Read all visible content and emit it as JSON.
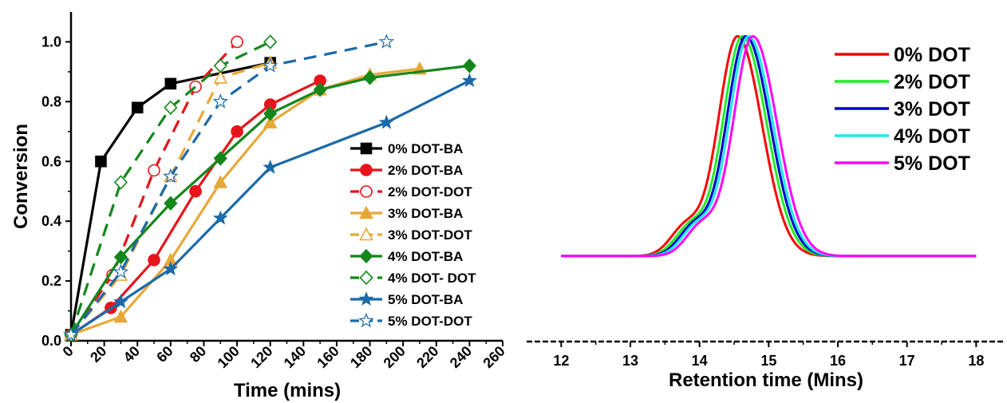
{
  "chart_data": [
    {
      "type": "line",
      "xlabel": "Time (mins)",
      "ylabel": "Conversion",
      "xlim": [
        0,
        260
      ],
      "ylim": [
        0,
        1.1
      ],
      "xticks": [
        "0",
        "20",
        "40",
        "60",
        "80",
        "100",
        "120",
        "140",
        "160",
        "180",
        "200",
        "220",
        "240",
        "260"
      ],
      "yticks": [
        "0.0",
        "0.2",
        "0.4",
        "0.6",
        "0.8",
        "1.0"
      ],
      "legend_position": "lower-right",
      "series": [
        {
          "name": "0% DOT-BA",
          "color": "#000000",
          "dash": false,
          "marker": "square",
          "filled": true,
          "x": [
            0,
            18,
            40,
            60,
            120
          ],
          "y": [
            0.02,
            0.6,
            0.78,
            0.86,
            0.93
          ]
        },
        {
          "name": "2% DOT-BA",
          "color": "#e8141c",
          "dash": false,
          "marker": "circle",
          "filled": true,
          "x": [
            0,
            24,
            50,
            75,
            100,
            120,
            150
          ],
          "y": [
            0.02,
            0.11,
            0.27,
            0.5,
            0.7,
            0.79,
            0.87
          ]
        },
        {
          "name": "2% DOT-DOT",
          "color": "#e8141c",
          "dash": true,
          "marker": "circle",
          "filled": false,
          "x": [
            0,
            25,
            50,
            75,
            100
          ],
          "y": [
            0.02,
            0.22,
            0.57,
            0.85,
            1.0
          ]
        },
        {
          "name": "3% DOT-BA",
          "color": "#e8a838",
          "dash": false,
          "marker": "triangle",
          "filled": true,
          "x": [
            0,
            30,
            60,
            90,
            120,
            150,
            180,
            210
          ],
          "y": [
            0.02,
            0.08,
            0.27,
            0.53,
            0.73,
            0.84,
            0.89,
            0.91
          ]
        },
        {
          "name": "3% DOT-DOT",
          "color": "#e8a838",
          "dash": true,
          "marker": "triangle",
          "filled": false,
          "x": [
            0,
            30,
            60,
            90,
            120
          ],
          "y": [
            0.02,
            0.22,
            0.55,
            0.88,
            0.93
          ]
        },
        {
          "name": "4% DOT-BA",
          "color": "#13871a",
          "dash": false,
          "marker": "diamond",
          "filled": true,
          "x": [
            0,
            30,
            60,
            90,
            120,
            150,
            180,
            240
          ],
          "y": [
            0.02,
            0.28,
            0.46,
            0.61,
            0.76,
            0.84,
            0.88,
            0.92
          ]
        },
        {
          "name": "4% DOT- DOT",
          "color": "#13871a",
          "dash": true,
          "marker": "diamond",
          "filled": false,
          "x": [
            0,
            30,
            60,
            90,
            120
          ],
          "y": [
            0.02,
            0.53,
            0.78,
            0.92,
            1.0
          ]
        },
        {
          "name": "5% DOT-BA",
          "color": "#1a6aa8",
          "dash": false,
          "marker": "star",
          "filled": true,
          "x": [
            0,
            30,
            60,
            90,
            120,
            190,
            240
          ],
          "y": [
            0.02,
            0.13,
            0.24,
            0.41,
            0.58,
            0.73,
            0.87
          ]
        },
        {
          "name": "5% DOT-DOT",
          "color": "#1a6aa8",
          "dash": true,
          "marker": "star",
          "filled": false,
          "x": [
            0,
            30,
            60,
            90,
            120,
            190
          ],
          "y": [
            0.02,
            0.23,
            0.55,
            0.8,
            0.92,
            1.0
          ]
        }
      ]
    },
    {
      "type": "line",
      "xlabel": "Retention time (Mins)",
      "ylabel": "",
      "xlim": [
        11.5,
        18.4
      ],
      "ylim": [
        -0.25,
        1.1
      ],
      "xticks": [
        "12",
        "13",
        "14",
        "15",
        "16",
        "17",
        "18"
      ],
      "legend_position": "top-right",
      "peak_shape": {
        "baseline": 0.1,
        "peak": 1.0,
        "width": 0.28,
        "shoulder_offset": -0.75,
        "shoulder_height": 0.12
      },
      "series": [
        {
          "name": "0% DOT",
          "color": "#ff0000",
          "peak_x": 14.55
        },
        {
          "name": "2% DOT",
          "color": "#22ee22",
          "peak_x": 14.62
        },
        {
          "name": "3% DOT",
          "color": "#0000cc",
          "peak_x": 14.67
        },
        {
          "name": "4% DOT",
          "color": "#22e8ee",
          "peak_x": 14.71
        },
        {
          "name": "5% DOT",
          "color": "#ff00ff",
          "peak_x": 14.77
        }
      ]
    }
  ]
}
